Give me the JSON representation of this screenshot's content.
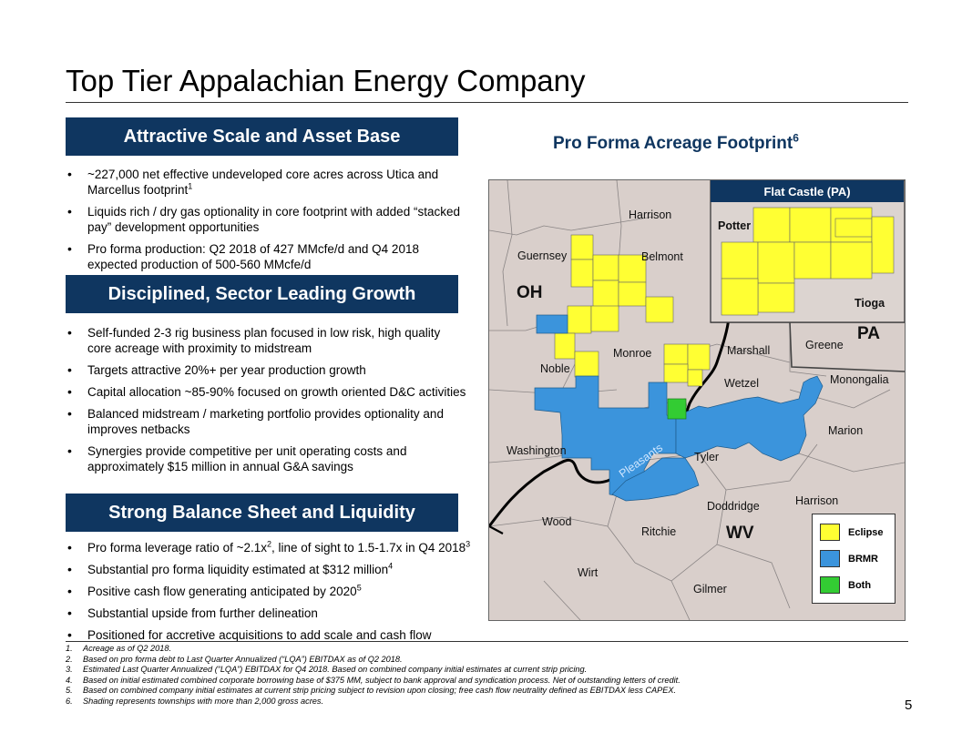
{
  "title": "Top Tier Appalachian Energy Company",
  "sections": [
    {
      "heading": "Attractive Scale and Asset Base",
      "bullets": [
        {
          "text": "~227,000 net effective undeveloped core acres across Utica and Marcellus footprint",
          "sup": "1"
        },
        {
          "text": "Liquids rich / dry gas optionality in core footprint with added “stacked pay” development opportunities",
          "sup": ""
        },
        {
          "text": "Pro forma production:  Q2 2018 of 427 MMcfe/d and Q4 2018 expected production of 500-560 MMcfe/d",
          "sup": ""
        }
      ]
    },
    {
      "heading": "Disciplined, Sector Leading Growth",
      "bullets": [
        {
          "text": "Self-funded 2-3 rig business plan focused in low risk, high quality core acreage with proximity to midstream",
          "sup": ""
        },
        {
          "text": "Targets attractive 20%+ per year production growth",
          "sup": ""
        },
        {
          "text": "Capital allocation ~85-90% focused on growth oriented D&C activities",
          "sup": ""
        },
        {
          "text": "Balanced midstream / marketing portfolio provides optionality and improves netbacks",
          "sup": ""
        },
        {
          "text": "Synergies provide competitive per unit operating costs and approximately $15 million in annual G&A savings",
          "sup": ""
        }
      ]
    },
    {
      "heading": "Strong Balance Sheet and Liquidity",
      "bullets": [
        {
          "pre": "Pro forma leverage ratio of ~2.1x",
          "sup": "2",
          "mid": ", line of sight to 1.5-1.7x in Q4 2018",
          "sup2": "3"
        },
        {
          "pre": "Substantial pro forma liquidity estimated at $312 million",
          "sup": "4",
          "mid": "",
          "sup2": ""
        },
        {
          "pre": "Positive cash flow generating anticipated by 2020",
          "sup": "5",
          "mid": "",
          "sup2": ""
        },
        {
          "pre": "Substantial upside from further delineation",
          "sup": "",
          "mid": "",
          "sup2": ""
        },
        {
          "pre": "Positioned for accretive acquisitions to add scale and cash flow",
          "sup": "",
          "mid": "",
          "sup2": ""
        }
      ]
    }
  ],
  "map": {
    "title": "Pro Forma Acreage Footprint",
    "title_sup": "6",
    "inset_title": "Flat Castle (PA)",
    "labels": {
      "harrison_oh": "Harrison",
      "guernsey": "Guernsey",
      "belmont": "Belmont",
      "oh": "OH",
      "noble": "Noble",
      "monroe": "Monroe",
      "marshall": "Marshall",
      "greene": "Greene",
      "pa": "PA",
      "wetzel": "Wetzel",
      "monongalia": "Monongalia",
      "marion": "Marion",
      "washington": "Washington",
      "tyler": "Tyler",
      "pleasants": "Pleasants",
      "doddridge": "Doddridge",
      "harrison_wv": "Harrison",
      "wood": "Wood",
      "ritchie": "Ritchie",
      "wv": "WV",
      "wirt": "Wirt",
      "gilmer": "Gilmer",
      "potter": "Potter",
      "tioga": "Tioga"
    },
    "legend": [
      {
        "label": "Eclipse",
        "color": "#ffff33"
      },
      {
        "label": "BRMR",
        "color": "#3b94dc"
      },
      {
        "label": "Both",
        "color": "#33cc33"
      }
    ]
  },
  "footnotes": [
    {
      "num": "1.",
      "text": "Acreage as of Q2 2018."
    },
    {
      "num": "2.",
      "text": "Based on pro forma debt to Last Quarter Annualized (“LQA”) EBITDAX as of Q2 2018."
    },
    {
      "num": "3.",
      "text": "Estimated Last Quarter Annualized (“LQA”) EBITDAX for Q4 2018. Based on combined company initial estimates at current strip pricing."
    },
    {
      "num": "4.",
      "text": "Based on initial estimated combined corporate borrowing base of $375 MM, subject to bank approval and syndication process. Net of outstanding letters of credit."
    },
    {
      "num": "5.",
      "text": "Based on combined company initial estimates at current strip pricing subject to revision upon closing; free cash flow neutrality defined as EBITDAX less CAPEX."
    },
    {
      "num": "6.",
      "text": "Shading represents townships with more than 2,000 gross acres."
    }
  ],
  "page_number": "5"
}
